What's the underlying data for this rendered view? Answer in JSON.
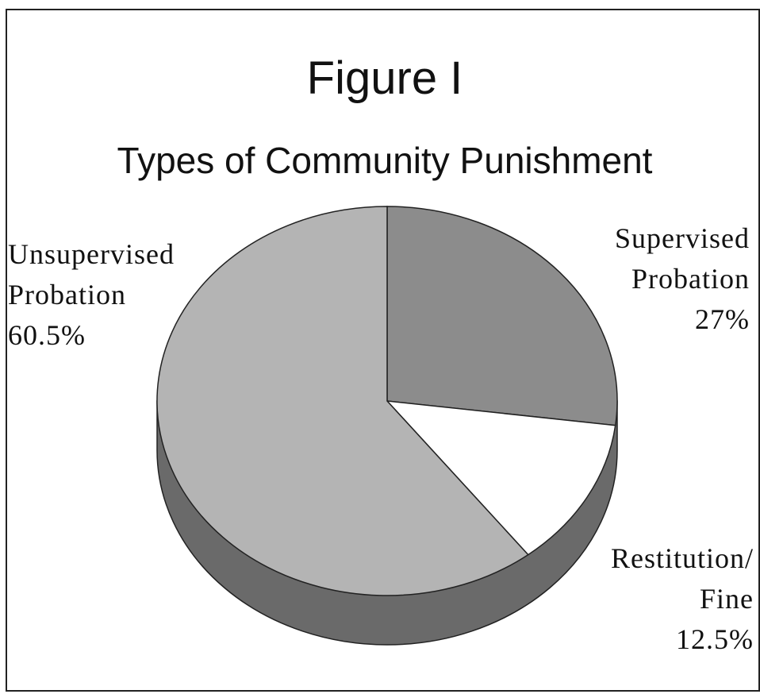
{
  "chart_data": {
    "type": "pie",
    "title": "Figure I",
    "subtitle": "Types of Community Punishment",
    "categories": [
      "Supervised Probation",
      "Restitution/ Fine",
      "Unsupervised Probation"
    ],
    "values": [
      27,
      12.5,
      60.5
    ],
    "value_labels": [
      "27%",
      "12.5%",
      "60.5%"
    ],
    "colors": [
      "#8c8c8c",
      "#ffffff",
      "#b4b4b4"
    ]
  }
}
